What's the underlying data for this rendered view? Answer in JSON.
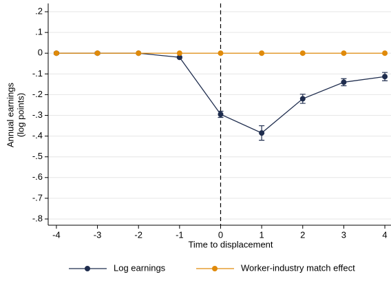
{
  "chart_data": {
    "type": "line",
    "ylabel": [
      "Annual earnings",
      "(log points)"
    ],
    "xlabel": "Time to displacement",
    "x": [
      -4,
      -3,
      -2,
      -1,
      0,
      1,
      2,
      3,
      4
    ],
    "series": [
      {
        "name": "Log earnings",
        "color": "#1f2d4e",
        "values": [
          0,
          0,
          0,
          -0.02,
          -0.295,
          -0.385,
          -0.22,
          -0.14,
          -0.113
        ],
        "errors": [
          0.005,
          0.005,
          0,
          0.004,
          0.015,
          0.035,
          0.022,
          0.017,
          0.02
        ]
      },
      {
        "name": "Worker-industry match effect",
        "color": "#e08a0a",
        "values": [
          0,
          0,
          0,
          0,
          0,
          0,
          0,
          0,
          0
        ]
      }
    ],
    "xlim": [
      -4.2,
      4.15
    ],
    "ylim": [
      -0.83,
      0.24
    ],
    "xticks": [
      -4,
      -3,
      -2,
      -1,
      0,
      1,
      2,
      3,
      4
    ],
    "yticks": [
      {
        "value": 0.2,
        "label": ".2"
      },
      {
        "value": 0.1,
        "label": ".1"
      },
      0,
      {
        "value": -0.1,
        "label": "-.1"
      },
      {
        "value": -0.2,
        "label": "-.2"
      },
      {
        "value": -0.3,
        "label": "-.3"
      },
      {
        "value": -0.4,
        "label": "-.4"
      },
      {
        "value": -0.5,
        "label": "-.5"
      },
      {
        "value": -0.6,
        "label": "-.6"
      },
      {
        "value": -0.7,
        "label": "-.7"
      },
      {
        "value": -0.8,
        "label": "-.8"
      }
    ],
    "vline": 0,
    "grid": true,
    "legend": "bottom"
  }
}
